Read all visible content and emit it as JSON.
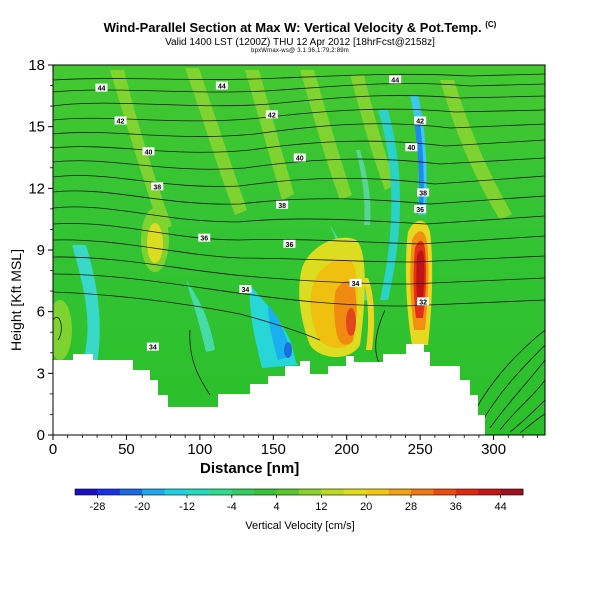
{
  "chart_data": {
    "type": "heatmap",
    "title": "Wind-Parallel Section at Max W: Vertical Velocity & Pot.Temp.",
    "copyright": "(C)",
    "subtitle": "Valid 1400 LST (1200Z) THU 12 Apr 2012 [18hrFcst@2158z]",
    "credit": "bpxWmax-ws@ 3.1 36,1:79,2:89m",
    "xlabel": "Distance [nm]",
    "ylabel": "Height [Kft MSL]",
    "x_ticks": [
      0,
      50,
      100,
      150,
      200,
      250,
      300
    ],
    "y_ticks": [
      0,
      3,
      6,
      9,
      12,
      15,
      18
    ],
    "xlim": [
      0,
      335
    ],
    "ylim": [
      0,
      18
    ],
    "colorbar": {
      "label": "Vertical Velocity [cm/s]",
      "ticks": [
        -28,
        -20,
        -12,
        -4,
        4,
        12,
        20,
        28,
        36,
        44
      ],
      "range": [
        -32,
        48
      ],
      "colors": [
        "#1a10c8",
        "#1a30e8",
        "#1a6ae8",
        "#1aa8f0",
        "#1ad2e8",
        "#20dcc0",
        "#2ade90",
        "#30d060",
        "#36c436",
        "#58c828",
        "#8ad428",
        "#bcdc20",
        "#e0dc18",
        "#f4c810",
        "#f4a410",
        "#f47810",
        "#ec4c10",
        "#e02810",
        "#c81414",
        "#a0101c"
      ]
    },
    "theta_labels": [
      {
        "text": "44",
        "x": 33,
        "y": 16.9
      },
      {
        "text": "44",
        "x": 115,
        "y": 17.0
      },
      {
        "text": "44",
        "x": 233,
        "y": 17.3
      },
      {
        "text": "42",
        "x": 46,
        "y": 15.3
      },
      {
        "text": "42",
        "x": 149,
        "y": 15.6
      },
      {
        "text": "42",
        "x": 250,
        "y": 15.3
      },
      {
        "text": "40",
        "x": 65,
        "y": 13.8
      },
      {
        "text": "40",
        "x": 168,
        "y": 13.5
      },
      {
        "text": "40",
        "x": 244,
        "y": 14.0
      },
      {
        "text": "38",
        "x": 71,
        "y": 12.1
      },
      {
        "text": "38",
        "x": 156,
        "y": 11.2
      },
      {
        "text": "38",
        "x": 252,
        "y": 11.8
      },
      {
        "text": "36",
        "x": 103,
        "y": 9.6
      },
      {
        "text": "36",
        "x": 161,
        "y": 9.3
      },
      {
        "text": "36",
        "x": 250,
        "y": 11.0
      },
      {
        "text": "34",
        "x": 131,
        "y": 7.1
      },
      {
        "text": "34",
        "x": 206,
        "y": 7.4
      },
      {
        "text": "34",
        "x": 68,
        "y": 4.3
      },
      {
        "text": "32",
        "x": 252,
        "y": 6.5
      }
    ]
  }
}
